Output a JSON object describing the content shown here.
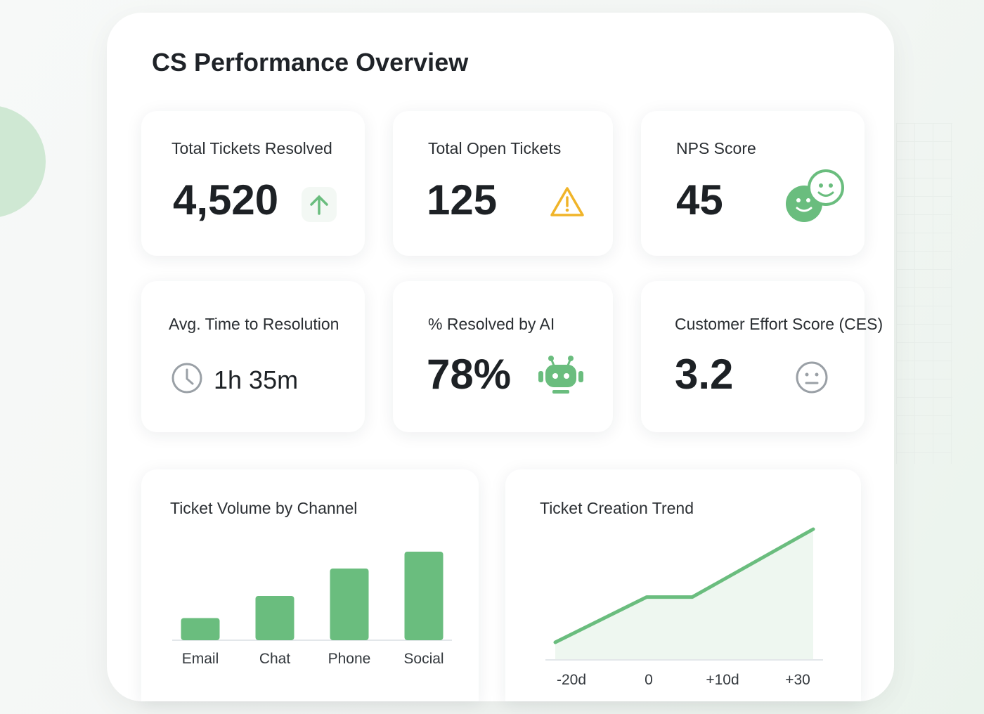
{
  "header": {
    "title": "CS Performance Overview"
  },
  "kpis": {
    "resolved": {
      "label": "Total Tickets Resolved",
      "value": "4,520",
      "icon": "arrow-up-icon"
    },
    "open": {
      "label": "Total Open Tickets",
      "value": "125",
      "icon": "warning-icon"
    },
    "nps": {
      "label": "NPS Score",
      "value": "45",
      "icon": "smiley-faces-icon"
    },
    "ttr": {
      "label": "Avg. Time to Resolution",
      "value": "1h 35m",
      "icon": "clock-icon"
    },
    "ai": {
      "label": "% Resolved by AI",
      "value": "78%",
      "icon": "robot-icon"
    },
    "ces": {
      "label": "Customer Effort Score (CES)",
      "value": "3.2",
      "icon": "neutral-face-icon"
    }
  },
  "colors": {
    "accent": "#6abd7e",
    "warning": "#f0b429",
    "text": "#1f2328"
  },
  "chart_data": [
    {
      "type": "bar",
      "title": "Ticket Volume by Channel",
      "categories": [
        "Email",
        "Chat",
        "Phone",
        "Social"
      ],
      "values": [
        25,
        50,
        81,
        100
      ],
      "ylim": [
        0,
        100
      ],
      "grid": false
    },
    {
      "type": "area",
      "title": "Ticket Creation Trend",
      "x_tick_labels": [
        "-20d",
        "0",
        "+10d",
        "+30"
      ],
      "values": [
        0,
        40,
        40,
        100
      ],
      "ylim": [
        0,
        100
      ],
      "grid": false
    }
  ]
}
